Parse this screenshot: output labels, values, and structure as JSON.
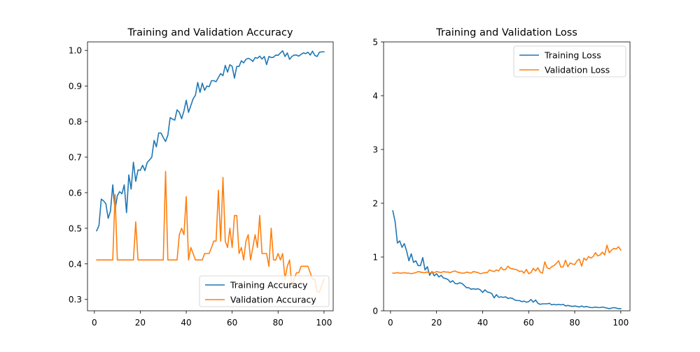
{
  "chart_data": [
    {
      "type": "line",
      "title": "Training and Validation Accuracy",
      "xlabel": "",
      "ylabel": "",
      "xlim": [
        -3,
        104
      ],
      "ylim": [
        0.268,
        1.024
      ],
      "xticks": [
        0,
        20,
        40,
        60,
        80,
        100
      ],
      "yticks": [
        0.3,
        0.4,
        0.5,
        0.6,
        0.7,
        0.8,
        0.9,
        1.0
      ],
      "ytick_labels": [
        "0.3",
        "0.4",
        "0.5",
        "0.6",
        "0.7",
        "0.8",
        "0.9",
        "1.0"
      ],
      "grid": false,
      "legend_position": "lower-right",
      "x": [
        1,
        2,
        3,
        4,
        5,
        6,
        7,
        8,
        9,
        10,
        11,
        12,
        13,
        14,
        15,
        16,
        17,
        18,
        19,
        20,
        21,
        22,
        23,
        24,
        25,
        26,
        27,
        28,
        29,
        30,
        31,
        32,
        33,
        34,
        35,
        36,
        37,
        38,
        39,
        40,
        41,
        42,
        43,
        44,
        45,
        46,
        47,
        48,
        49,
        50,
        51,
        52,
        53,
        54,
        55,
        56,
        57,
        58,
        59,
        60,
        61,
        62,
        63,
        64,
        65,
        66,
        67,
        68,
        69,
        70,
        71,
        72,
        73,
        74,
        75,
        76,
        77,
        78,
        79,
        80,
        81,
        82,
        83,
        84,
        85,
        86,
        87,
        88,
        89,
        90,
        91,
        92,
        93,
        94,
        95,
        96,
        97,
        98,
        99,
        100
      ],
      "series": [
        {
          "name": "Training Accuracy",
          "color": "#1f77b4",
          "values": [
            0.493,
            0.508,
            0.582,
            0.577,
            0.569,
            0.528,
            0.548,
            0.622,
            0.551,
            0.592,
            0.603,
            0.597,
            0.622,
            0.544,
            0.65,
            0.61,
            0.686,
            0.632,
            0.664,
            0.663,
            0.677,
            0.662,
            0.685,
            0.692,
            0.7,
            0.747,
            0.729,
            0.768,
            0.768,
            0.755,
            0.744,
            0.762,
            0.811,
            0.807,
            0.804,
            0.833,
            0.826,
            0.808,
            0.83,
            0.86,
            0.826,
            0.845,
            0.864,
            0.874,
            0.91,
            0.882,
            0.908,
            0.888,
            0.9,
            0.898,
            0.915,
            0.915,
            0.912,
            0.924,
            0.935,
            0.929,
            0.958,
            0.939,
            0.96,
            0.955,
            0.922,
            0.955,
            0.955,
            0.971,
            0.965,
            0.975,
            0.978,
            0.975,
            0.969,
            0.98,
            0.978,
            0.984,
            0.976,
            0.983,
            0.96,
            0.983,
            0.98,
            0.981,
            0.987,
            0.986,
            0.993,
            0.999,
            0.983,
            0.993,
            0.975,
            0.983,
            0.987,
            0.987,
            0.984,
            0.989,
            0.993,
            0.991,
            0.995,
            0.987,
            0.998,
            0.986,
            0.983,
            0.995,
            0.996,
            0.996
          ]
        },
        {
          "name": "Validation Accuracy",
          "color": "#ff7f0e",
          "values": [
            0.411,
            0.411,
            0.411,
            0.411,
            0.411,
            0.411,
            0.411,
            0.411,
            0.595,
            0.411,
            0.411,
            0.411,
            0.411,
            0.411,
            0.411,
            0.411,
            0.411,
            0.518,
            0.411,
            0.411,
            0.411,
            0.411,
            0.411,
            0.411,
            0.411,
            0.411,
            0.411,
            0.411,
            0.411,
            0.411,
            0.66,
            0.411,
            0.411,
            0.411,
            0.411,
            0.411,
            0.482,
            0.5,
            0.482,
            0.589,
            0.411,
            0.446,
            0.429,
            0.411,
            0.411,
            0.411,
            0.411,
            0.429,
            0.429,
            0.429,
            0.446,
            0.464,
            0.464,
            0.607,
            0.464,
            0.643,
            0.464,
            0.446,
            0.5,
            0.446,
            0.536,
            0.536,
            0.429,
            0.446,
            0.411,
            0.464,
            0.482,
            0.411,
            0.446,
            0.482,
            0.446,
            0.536,
            0.429,
            0.429,
            0.429,
            0.393,
            0.5,
            0.411,
            0.411,
            0.429,
            0.411,
            0.429,
            0.357,
            0.393,
            0.411,
            0.339,
            0.357,
            0.375,
            0.375,
            0.393,
            0.393,
            0.393,
            0.393,
            0.375,
            0.357,
            0.357,
            0.321,
            0.321,
            0.339,
            0.357
          ]
        }
      ]
    },
    {
      "type": "line",
      "title": "Training and Validation Loss",
      "xlabel": "",
      "ylabel": "",
      "xlim": [
        -3,
        104
      ],
      "ylim": [
        0,
        5
      ],
      "xticks": [
        0,
        20,
        40,
        60,
        80,
        100
      ],
      "yticks": [
        0,
        1,
        2,
        3,
        4,
        5
      ],
      "ytick_labels": [
        "0",
        "1",
        "2",
        "3",
        "4",
        "5"
      ],
      "grid": false,
      "legend_position": "upper-right",
      "x": [
        1,
        2,
        3,
        4,
        5,
        6,
        7,
        8,
        9,
        10,
        11,
        12,
        13,
        14,
        15,
        16,
        17,
        18,
        19,
        20,
        21,
        22,
        23,
        24,
        25,
        26,
        27,
        28,
        29,
        30,
        31,
        32,
        33,
        34,
        35,
        36,
        37,
        38,
        39,
        40,
        41,
        42,
        43,
        44,
        45,
        46,
        47,
        48,
        49,
        50,
        51,
        52,
        53,
        54,
        55,
        56,
        57,
        58,
        59,
        60,
        61,
        62,
        63,
        64,
        65,
        66,
        67,
        68,
        69,
        70,
        71,
        72,
        73,
        74,
        75,
        76,
        77,
        78,
        79,
        80,
        81,
        82,
        83,
        84,
        85,
        86,
        87,
        88,
        89,
        90,
        91,
        92,
        93,
        94,
        95,
        96,
        97,
        98,
        99,
        100
      ],
      "series": [
        {
          "name": "Training Loss",
          "color": "#1f77b4",
          "values": [
            1.86,
            1.66,
            1.26,
            1.3,
            1.18,
            1.25,
            1.11,
            0.93,
            1.06,
            0.9,
            0.93,
            0.84,
            0.84,
            0.99,
            0.76,
            0.82,
            0.66,
            0.73,
            0.65,
            0.69,
            0.63,
            0.66,
            0.61,
            0.6,
            0.58,
            0.53,
            0.56,
            0.51,
            0.5,
            0.52,
            0.51,
            0.47,
            0.43,
            0.43,
            0.4,
            0.41,
            0.4,
            0.41,
            0.39,
            0.34,
            0.39,
            0.35,
            0.34,
            0.32,
            0.24,
            0.3,
            0.25,
            0.26,
            0.25,
            0.26,
            0.23,
            0.24,
            0.23,
            0.2,
            0.19,
            0.19,
            0.17,
            0.18,
            0.16,
            0.17,
            0.21,
            0.16,
            0.2,
            0.14,
            0.12,
            0.13,
            0.13,
            0.13,
            0.14,
            0.11,
            0.12,
            0.11,
            0.12,
            0.11,
            0.12,
            0.09,
            0.1,
            0.09,
            0.08,
            0.09,
            0.08,
            0.07,
            0.09,
            0.07,
            0.08,
            0.07,
            0.06,
            0.06,
            0.07,
            0.06,
            0.06,
            0.07,
            0.06,
            0.05,
            0.04,
            0.05,
            0.06,
            0.05,
            0.04,
            0.04
          ]
        },
        {
          "name": "Validation Loss",
          "color": "#ff7f0e",
          "values": [
            0.7,
            0.7,
            0.71,
            0.7,
            0.7,
            0.71,
            0.7,
            0.7,
            0.69,
            0.7,
            0.71,
            0.73,
            0.72,
            0.71,
            0.71,
            0.72,
            0.7,
            0.72,
            0.71,
            0.73,
            0.72,
            0.71,
            0.73,
            0.72,
            0.72,
            0.71,
            0.73,
            0.74,
            0.72,
            0.71,
            0.7,
            0.7,
            0.72,
            0.71,
            0.7,
            0.73,
            0.72,
            0.71,
            0.69,
            0.7,
            0.71,
            0.71,
            0.76,
            0.74,
            0.73,
            0.76,
            0.74,
            0.81,
            0.76,
            0.77,
            0.83,
            0.79,
            0.78,
            0.77,
            0.76,
            0.73,
            0.74,
            0.7,
            0.77,
            0.69,
            0.71,
            0.79,
            0.74,
            0.8,
            0.72,
            0.7,
            0.91,
            0.8,
            0.78,
            0.82,
            0.84,
            0.88,
            0.93,
            0.81,
            0.82,
            0.94,
            0.82,
            0.89,
            0.87,
            0.86,
            0.93,
            0.96,
            0.83,
            0.98,
            0.94,
            1.01,
            0.98,
            1.01,
            1.08,
            1.02,
            1.04,
            1.09,
            1.04,
            1.22,
            1.08,
            1.13,
            1.16,
            1.15,
            1.19,
            1.13
          ]
        }
      ]
    }
  ]
}
